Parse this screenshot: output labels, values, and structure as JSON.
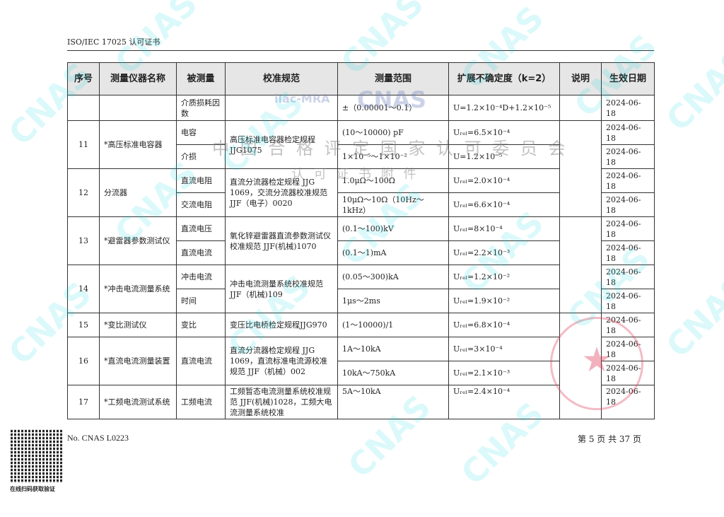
{
  "header": {
    "title": "ISO/IEC 17025 认可证书"
  },
  "columns": [
    "序号",
    "测量仪器名称",
    "被测量",
    "校准规范",
    "测量范围",
    "扩展不确定度（k=2）",
    "说明",
    "生效日期"
  ],
  "rows": [
    {
      "no": "",
      "name": "",
      "standard": "",
      "subrows": [
        {
          "quantity": "介质损耗因数",
          "range": "±（0.00001～0.1）",
          "uncertainty": "U=1.2×10⁻⁴D+1.2×10⁻⁵",
          "date": "2024-06-18"
        }
      ]
    },
    {
      "no": "11",
      "name": "*高压标准电容器",
      "standard": "高压标准电容器检定规程JJG1075",
      "subrows": [
        {
          "quantity": "电容",
          "range": "(10～10000) pF",
          "uncertainty": "Uᵣₑₗ=6.5×10⁻⁴",
          "date": "2024-06-18"
        },
        {
          "quantity": "介损",
          "range": "1×10⁻⁵～1×10⁻²",
          "uncertainty": "U=1.2×10⁻⁵",
          "date": "2024-06-18"
        }
      ]
    },
    {
      "no": "12",
      "name": "分流器",
      "standard": "直流分流器检定规程 JJG 1069，交流分流器校准规范 JJF（电子）0020",
      "subrows": [
        {
          "quantity": "直流电阻",
          "range": "1.0μΩ～100Ω",
          "uncertainty": "Uᵣₑₗ=2.0×10⁻⁴",
          "date": "2024-06-18"
        },
        {
          "quantity": "交流电阻",
          "range": "10μΩ～10Ω（10Hz～1kHz）",
          "uncertainty": "Uᵣₑₗ=6.6×10⁻⁴",
          "date": "2024-06-18"
        }
      ]
    },
    {
      "no": "13",
      "name": "*避雷器参数测试仪",
      "standard": "氧化锌避雷器直流参数测试仪校准规范 JJF(机械)1070",
      "subrows": [
        {
          "quantity": "直流电压",
          "range": "(0.1～100)kV",
          "uncertainty": "Uᵣₑₗ=8×10⁻⁴",
          "date": "2024-06-18"
        },
        {
          "quantity": "直流电流",
          "range": "(0.1～1)mA",
          "uncertainty": "Uᵣₑₗ=2.2×10⁻³",
          "date": "2024-06-18"
        }
      ]
    },
    {
      "no": "14",
      "name": "*冲击电流测量系统",
      "standard": "冲击电流测量系统校准规范 JJF（机械)109",
      "subrows": [
        {
          "quantity": "冲击电流",
          "range": "(0.05～300)kA",
          "uncertainty": "Uᵣₑₗ=1.2×10⁻²",
          "date": "2024-06-18"
        },
        {
          "quantity": "时间",
          "range": "1μs～2ms",
          "uncertainty": "Uᵣₑₗ=1.9×10⁻²",
          "date": "2024-06-18"
        }
      ]
    },
    {
      "no": "15",
      "name": "*变比测试仪",
      "standard": "变压比电桥检定规程JJG970",
      "subrows": [
        {
          "quantity": "变比",
          "range": "(1～10000)/1",
          "uncertainty": "Uᵣₑₗ=6.8×10⁻⁴",
          "date": "2024-06-18"
        }
      ]
    },
    {
      "no": "16",
      "name": "*直流电流测量装置",
      "quantity": "直流电流",
      "standard": "直流分流器检定规程 JJG 1069，直流标准电流源校准规范 JJF（机械）002",
      "subrows": [
        {
          "range": "1A～10kA",
          "uncertainty": "Uᵣₑₗ=3×10⁻⁴",
          "date": "2024-06-18"
        },
        {
          "range": "10kA～750kA",
          "uncertainty": "Uᵣₑₗ=2.1×10⁻³",
          "date": "2024-06-18"
        }
      ]
    },
    {
      "no": "17",
      "name": "*工频电流测试系统",
      "standard": "工频暂态电流测量系统校准规范 JJF(机械)1028，工频大电流测量系统校准",
      "subrows": [
        {
          "quantity": "工频电流",
          "range": "5A～10kA",
          "uncertainty": "Uᵣₑₗ=2.4×10⁻⁴",
          "date": "2024-06-18"
        }
      ]
    }
  ],
  "watermarks": {
    "line1": "中 国 合 格 评 定 国 家 认 可 委 员 会",
    "line2": "认 可 证 书 附 件",
    "cnas": "CNAS",
    "ilac": "ilac-MRA",
    "seal": "中国合格评定国家认可委员会 认可证书专用章"
  },
  "footer": {
    "cert_no": "No. CNAS L0223",
    "page": "第 5 页 共 37 页",
    "qr_caption": "在线扫码获取验证"
  }
}
